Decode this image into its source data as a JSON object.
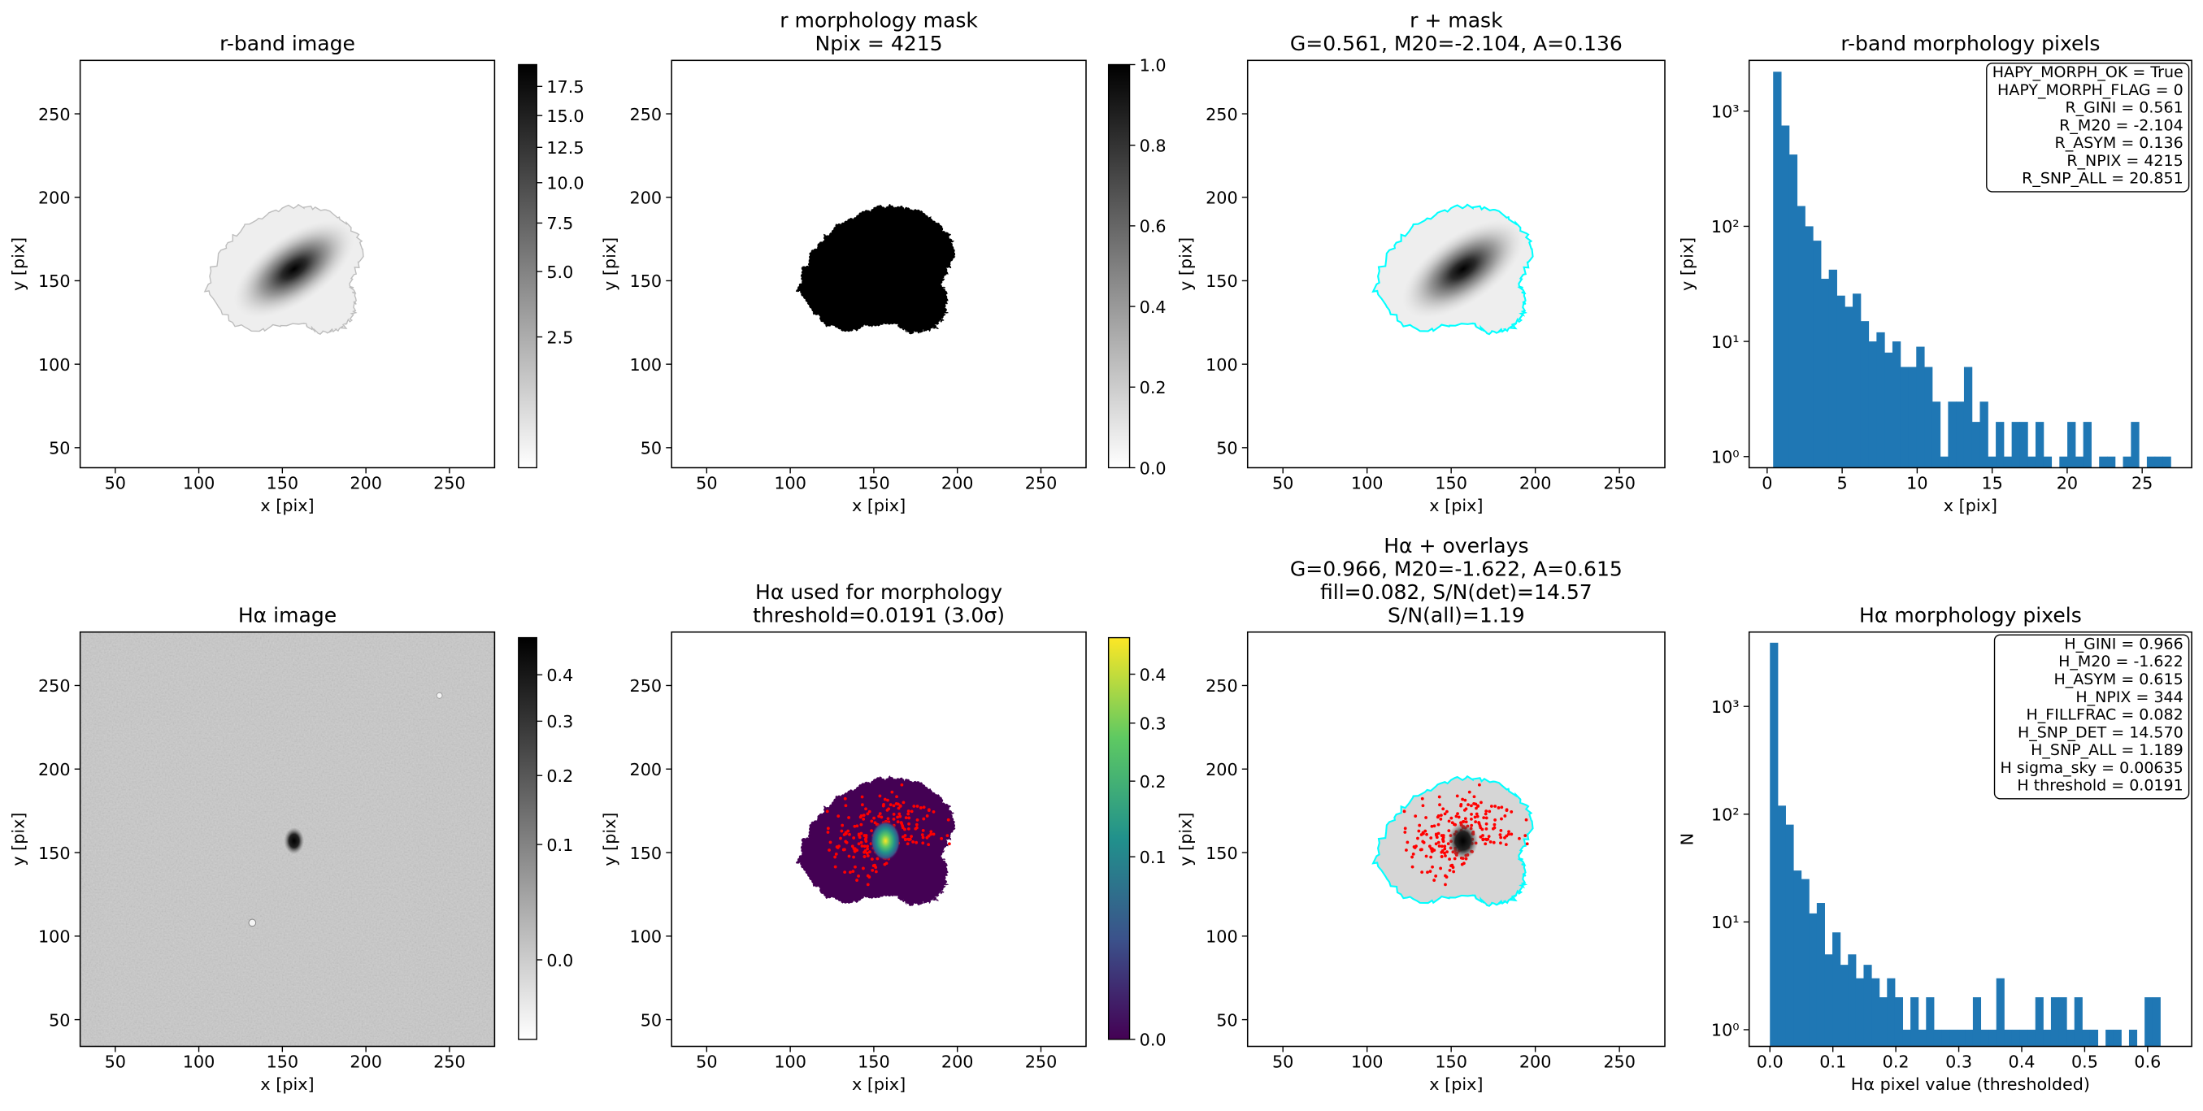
{
  "chart_data": [
    {
      "type": "image",
      "title": [
        "r-band image"
      ],
      "xlabel": "x [pix]",
      "ylabel": "y [pix]",
      "xlim": [
        29,
        277
      ],
      "ylim": [
        38,
        282
      ],
      "xticks": [
        50,
        100,
        150,
        200,
        250
      ],
      "yticks": [
        50,
        100,
        150,
        200,
        250
      ],
      "colorbar": {
        "colormap": "gray_r",
        "scale": "sqrt",
        "clim": [
          0.5,
          19.5
        ],
        "ticks": [
          2.5,
          {
            "value": 5,
            "label": "5.0"
          },
          7.5,
          {
            "value": 10,
            "label": "10.0"
          },
          12.5,
          {
            "value": 15,
            "label": "15.0"
          },
          17.5
        ]
      }
    },
    {
      "type": "image",
      "title": [
        "r morphology mask",
        "Npix = 4215"
      ],
      "xlabel": "x [pix]",
      "ylabel": "y [pix]",
      "xlim": [
        29,
        277
      ],
      "ylim": [
        38,
        282
      ],
      "xticks": [
        50,
        100,
        150,
        200,
        250
      ],
      "yticks": [
        50,
        100,
        150,
        200,
        250
      ],
      "colorbar": {
        "colormap": "gray_r",
        "scale": "linear",
        "clim": [
          0,
          1
        ],
        "ticks": [
          {
            "value": 0,
            "label": "0.0"
          },
          0.2,
          0.4,
          0.6,
          0.8,
          {
            "value": 1,
            "label": "1.0"
          }
        ]
      }
    },
    {
      "type": "image",
      "title": [
        "r + mask",
        "G=0.561, M20=-2.104, A=0.136"
      ],
      "xlabel": "x [pix]",
      "ylabel": "y [pix]",
      "xlim": [
        29,
        277
      ],
      "ylim": [
        38,
        282
      ],
      "xticks": [
        50,
        100,
        150,
        200,
        250
      ],
      "yticks": [
        50,
        100,
        150,
        200,
        250
      ]
    },
    {
      "type": "histogram",
      "title": [
        "r-band morphology pixels"
      ],
      "xlabel": "x [pix]",
      "ylabel": "y [pix]",
      "color": "#1f77b4",
      "xlim": [
        -1.2,
        28.3
      ],
      "xticks": [
        0,
        5,
        10,
        15,
        20,
        25
      ],
      "yscale": "log",
      "ylim": [
        0.8,
        2760
      ],
      "yticks": [
        {
          "value": 1,
          "label": "10⁰"
        },
        {
          "value": 10,
          "label": "10¹"
        },
        {
          "value": 100,
          "label": "10²"
        },
        {
          "value": 1000,
          "label": "10³"
        }
      ],
      "bins": [
        0.4,
        0.93,
        1.46,
        1.99,
        2.52,
        3.05,
        3.58,
        4.11,
        4.64,
        5.17,
        5.7,
        6.23,
        6.76,
        7.29,
        7.82,
        8.35,
        8.88,
        9.41,
        9.94,
        10.47,
        11.0,
        11.53,
        12.06,
        12.59,
        13.12,
        13.65,
        14.18,
        14.71,
        15.24,
        15.77,
        16.3,
        16.83,
        17.36,
        17.89,
        18.42,
        18.95,
        19.48,
        20.01,
        20.54,
        21.07,
        21.6,
        22.13,
        22.66,
        23.19,
        23.72,
        24.25,
        24.78,
        25.31,
        25.84,
        26.37,
        26.9
      ],
      "values": [
        2200,
        750,
        420,
        150,
        100,
        75,
        35,
        42,
        25,
        20,
        26,
        15,
        10,
        12,
        8,
        10,
        6,
        6,
        9,
        6,
        3,
        1,
        3,
        3,
        6,
        2,
        3,
        1,
        2,
        1,
        2,
        2,
        1,
        2,
        1,
        0,
        1,
        2,
        1,
        2,
        0,
        1,
        1,
        0,
        1,
        2,
        0,
        1,
        1,
        1
      ],
      "annotations": [
        "HAPY_MORPH_OK = True",
        "HAPY_MORPH_FLAG = 0",
        "R_GINI = 0.561",
        "R_M20 = -2.104",
        "R_ASYM = 0.136",
        "R_NPIX = 4215",
        "R_SNP_ALL = 20.851"
      ]
    },
    {
      "type": "image",
      "title": [
        "Hα image"
      ],
      "xlabel": "x [pix]",
      "ylabel": "y [pix]",
      "xlim": [
        29,
        277
      ],
      "ylim": [
        34,
        282
      ],
      "xticks": [
        50,
        100,
        150,
        200,
        250
      ],
      "yticks": [
        50,
        100,
        150,
        200,
        250
      ],
      "colorbar": {
        "colormap": "gray_r",
        "scale": "sqrt",
        "clim": [
          -0.02,
          0.49
        ],
        "ticks": [
          {
            "value": 0,
            "label": "0.0"
          },
          0.1,
          0.2,
          0.3,
          0.4
        ]
      }
    },
    {
      "type": "image",
      "title": [
        "Hα used for morphology",
        "threshold=0.0191 (3.0σ)"
      ],
      "xlabel": "x [pix]",
      "ylabel": "y [pix]",
      "xlim": [
        29,
        277
      ],
      "ylim": [
        34,
        282
      ],
      "xticks": [
        50,
        100,
        150,
        200,
        250
      ],
      "yticks": [
        50,
        100,
        150,
        200,
        250
      ],
      "colorbar": {
        "colormap": "viridis",
        "scale": "sqrt",
        "clim": [
          0,
          0.484
        ],
        "ticks": [
          {
            "value": 0,
            "label": "0.0"
          },
          0.1,
          0.2,
          0.3,
          0.4
        ]
      }
    },
    {
      "type": "image",
      "title": [
        "Hα + overlays",
        "G=0.966, M20=-1.622, A=0.615",
        "fill=0.082, S/N(det)=14.57",
        "S/N(all)=1.19"
      ],
      "xlabel": "x [pix]",
      "ylabel": "y [pix]",
      "xlim": [
        29,
        277
      ],
      "ylim": [
        34,
        282
      ],
      "xticks": [
        50,
        100,
        150,
        200,
        250
      ],
      "yticks": [
        50,
        100,
        150,
        200,
        250
      ]
    },
    {
      "type": "histogram",
      "title": [
        "Hα morphology pixels"
      ],
      "xlabel": "Hα pixel value (thresholded)",
      "ylabel": "N",
      "color": "#1f77b4",
      "xlim": [
        -0.033,
        0.67
      ],
      "xticks": [
        {
          "value": 0,
          "label": "0.0"
        },
        0.1,
        0.2,
        0.3,
        0.4,
        0.5,
        0.6
      ],
      "yscale": "log",
      "ylim": [
        0.7,
        4900
      ],
      "yticks": [
        {
          "value": 1,
          "label": "10⁰"
        },
        {
          "value": 10,
          "label": "10¹"
        },
        {
          "value": 100,
          "label": "10²"
        },
        {
          "value": 1000,
          "label": "10³"
        }
      ],
      "bins": [
        0,
        0.0124,
        0.0248,
        0.0372,
        0.0496,
        0.062,
        0.0744,
        0.0868,
        0.0992,
        0.1116,
        0.124,
        0.1364,
        0.1488,
        0.1612,
        0.1736,
        0.186,
        0.1984,
        0.2108,
        0.2232,
        0.2356,
        0.248,
        0.2604,
        0.2728,
        0.2852,
        0.2976,
        0.31,
        0.3224,
        0.3348,
        0.3472,
        0.3596,
        0.372,
        0.3844,
        0.3968,
        0.4092,
        0.4216,
        0.434,
        0.4464,
        0.4588,
        0.4712,
        0.4836,
        0.496,
        0.5084,
        0.5208,
        0.5332,
        0.5456,
        0.558,
        0.5704,
        0.5828,
        0.5952,
        0.6076,
        0.62
      ],
      "values": [
        3900,
        120,
        80,
        30,
        25,
        12,
        15,
        5,
        8,
        4,
        5,
        3,
        4,
        3,
        2,
        3,
        2,
        1,
        2,
        1,
        2,
        1,
        1,
        1,
        1,
        1,
        2,
        1,
        1,
        3,
        1,
        1,
        1,
        1,
        2,
        1,
        2,
        2,
        1,
        2,
        1,
        1,
        0,
        1,
        1,
        0,
        1,
        0,
        2,
        2
      ],
      "annotations": [
        "H_GINI = 0.966",
        "H_M20 = -1.622",
        "H_ASYM = 0.615",
        "H_NPIX = 344",
        "H_FILLFRAC = 0.082",
        "H_SNP_DET = 14.570",
        "H_SNP_ALL = 1.189",
        "H sigma_sky = 0.00635",
        "H threshold = 0.0191"
      ]
    }
  ]
}
